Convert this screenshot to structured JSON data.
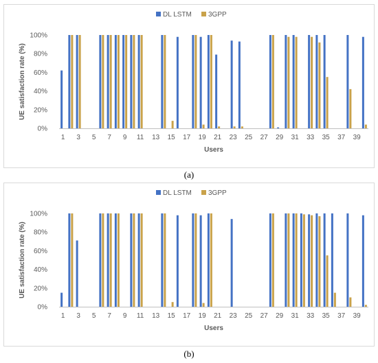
{
  "colors": {
    "dl_lstm": "#4472C4",
    "gpp": "#C9A24A",
    "axis": "#bfbfbf",
    "text": "#595959"
  },
  "chart_data": [
    {
      "type": "bar",
      "panel_label": "(a)",
      "legend_position": "top",
      "grid": false,
      "xlabel": "Users",
      "ylabel": "UE satisfaction rate (%)",
      "ylim": [
        0,
        100
      ],
      "yticks": [
        "0%",
        "20%",
        "40%",
        "60%",
        "80%",
        "100%"
      ],
      "categories": [
        1,
        2,
        3,
        4,
        5,
        6,
        7,
        8,
        9,
        10,
        11,
        12,
        13,
        14,
        15,
        16,
        17,
        18,
        19,
        20,
        21,
        22,
        23,
        24,
        25,
        26,
        27,
        28,
        29,
        30,
        31,
        32,
        33,
        34,
        35,
        36,
        37,
        38,
        39,
        40
      ],
      "xtick_labels": [
        "1",
        "3",
        "5",
        "7",
        "9",
        "11",
        "13",
        "15",
        "17",
        "19",
        "21",
        "23",
        "25",
        "27",
        "29",
        "31",
        "33",
        "35",
        "37",
        "39"
      ],
      "series": [
        {
          "name": "DL LSTM",
          "values": [
            62,
            100,
            100,
            0,
            0,
            100,
            100,
            100,
            100,
            100,
            100,
            0,
            0,
            100,
            0,
            98,
            0,
            100,
            98,
            100,
            79,
            0,
            94,
            93,
            0,
            0,
            0,
            100,
            1,
            100,
            100,
            0,
            100,
            100,
            100,
            0,
            0,
            100,
            0,
            98
          ]
        },
        {
          "name": "3GPP",
          "values": [
            0,
            100,
            100,
            0,
            0,
            100,
            100,
            100,
            100,
            100,
            100,
            0,
            0,
            100,
            8,
            0,
            0,
            100,
            4,
            100,
            2,
            0,
            2,
            2,
            0,
            0,
            0,
            100,
            0,
            98,
            98,
            0,
            98,
            92,
            55,
            0,
            0,
            42,
            0,
            4
          ]
        }
      ]
    },
    {
      "type": "bar",
      "panel_label": "(b)",
      "legend_position": "top",
      "grid": false,
      "xlabel": "Users",
      "ylabel": "UE satisfaction rate (%)",
      "ylim": [
        0,
        100
      ],
      "yticks": [
        "0%",
        "20%",
        "40%",
        "60%",
        "80%",
        "100%"
      ],
      "categories": [
        1,
        2,
        3,
        4,
        5,
        6,
        7,
        8,
        9,
        10,
        11,
        12,
        13,
        14,
        15,
        16,
        17,
        18,
        19,
        20,
        21,
        22,
        23,
        24,
        25,
        26,
        27,
        28,
        29,
        30,
        31,
        32,
        33,
        34,
        35,
        36,
        37,
        38,
        39,
        40
      ],
      "xtick_labels": [
        "1",
        "3",
        "5",
        "7",
        "9",
        "11",
        "13",
        "15",
        "17",
        "19",
        "21",
        "23",
        "25",
        "27",
        "29",
        "31",
        "33",
        "35",
        "37",
        "39"
      ],
      "series": [
        {
          "name": "DL LSTM",
          "values": [
            15,
            100,
            71,
            0,
            0,
            100,
            100,
            100,
            0,
            100,
            100,
            0,
            0,
            100,
            0,
            98,
            0,
            100,
            98,
            100,
            0,
            0,
            94,
            0,
            0,
            0,
            0,
            100,
            0,
            100,
            100,
            100,
            99,
            100,
            100,
            100,
            0,
            100,
            0,
            98
          ]
        },
        {
          "name": "3GPP",
          "values": [
            0,
            100,
            0,
            0,
            0,
            100,
            100,
            100,
            0,
            100,
            100,
            0,
            0,
            100,
            5,
            0,
            0,
            100,
            4,
            100,
            0,
            0,
            0,
            0,
            0,
            0,
            0,
            100,
            0,
            100,
            100,
            99,
            98,
            97,
            55,
            15,
            0,
            10,
            0,
            2
          ]
        }
      ]
    }
  ]
}
